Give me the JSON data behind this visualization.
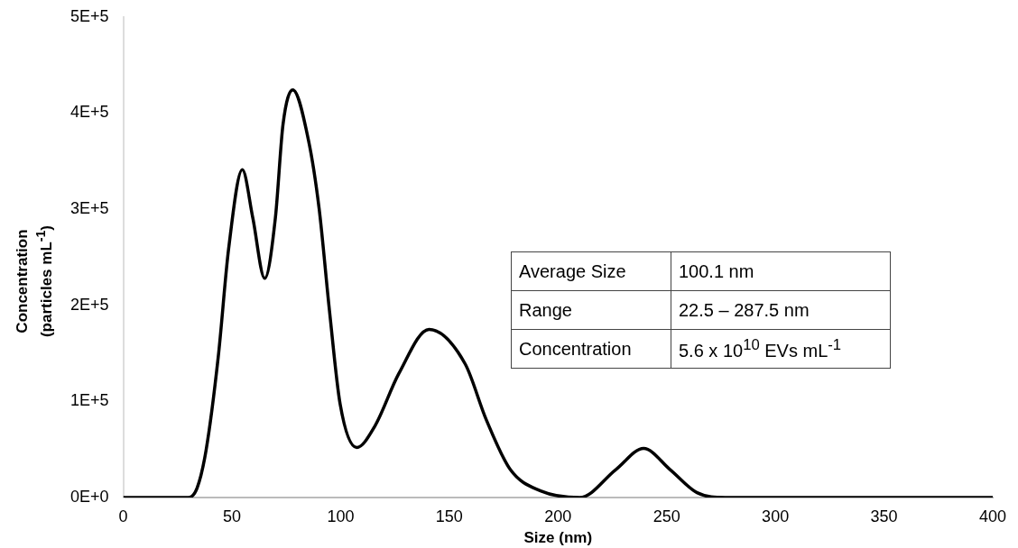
{
  "chart_data": {
    "type": "line",
    "xlabel": "Size (nm)",
    "ylabel": "Concentration\n(particles mL$^{-1}$)",
    "x": [
      0,
      25,
      30,
      34,
      38.1,
      43.7,
      48.5,
      54.8,
      59.6,
      65.1,
      70,
      73.5,
      78,
      85.2,
      90.1,
      94.9,
      99.8,
      107.4,
      115.7,
      126.8,
      140.7,
      157.3,
      167,
      178.1,
      192,
      210,
      226.6,
      239.4,
      251.6,
      264,
      277,
      400
    ],
    "series": [
      {
        "color": "#000000",
        "values": [
          0,
          0,
          0,
          10000,
          49000,
          146000,
          259000,
          341000,
          291000,
          228000,
          291000,
          388000,
          424000,
          372000,
          301000,
          194000,
          97000,
          52000,
          74000,
          129000,
          175000,
          139000,
          81000,
          29000,
          7000,
          0,
          29000,
          51000,
          29000,
          5000,
          0,
          0
        ]
      }
    ],
    "xlim": [
      0,
      400
    ],
    "xticks": [
      0,
      50,
      100,
      150,
      200,
      250,
      300,
      350,
      400
    ],
    "ylim": [
      0,
      500000
    ],
    "yticks": [
      {
        "value": 0,
        "label": "0E+0"
      },
      {
        "value": 100000,
        "label": "1E+5"
      },
      {
        "value": 200000,
        "label": "2E+5"
      },
      {
        "value": 300000,
        "label": "3E+5"
      },
      {
        "value": 400000,
        "label": "4E+5"
      },
      {
        "value": 500000,
        "label": "5E+5"
      }
    ],
    "annotations": [
      "Average Size",
      "100.1 nm",
      "Range",
      "22.5 – 287.5 nm",
      "Concentration",
      "5.6 x 10$^{10}$ EVs mL$^{-1}$"
    ],
    "grid": false,
    "legend": false,
    "marker": "none",
    "line_style": "solid"
  }
}
